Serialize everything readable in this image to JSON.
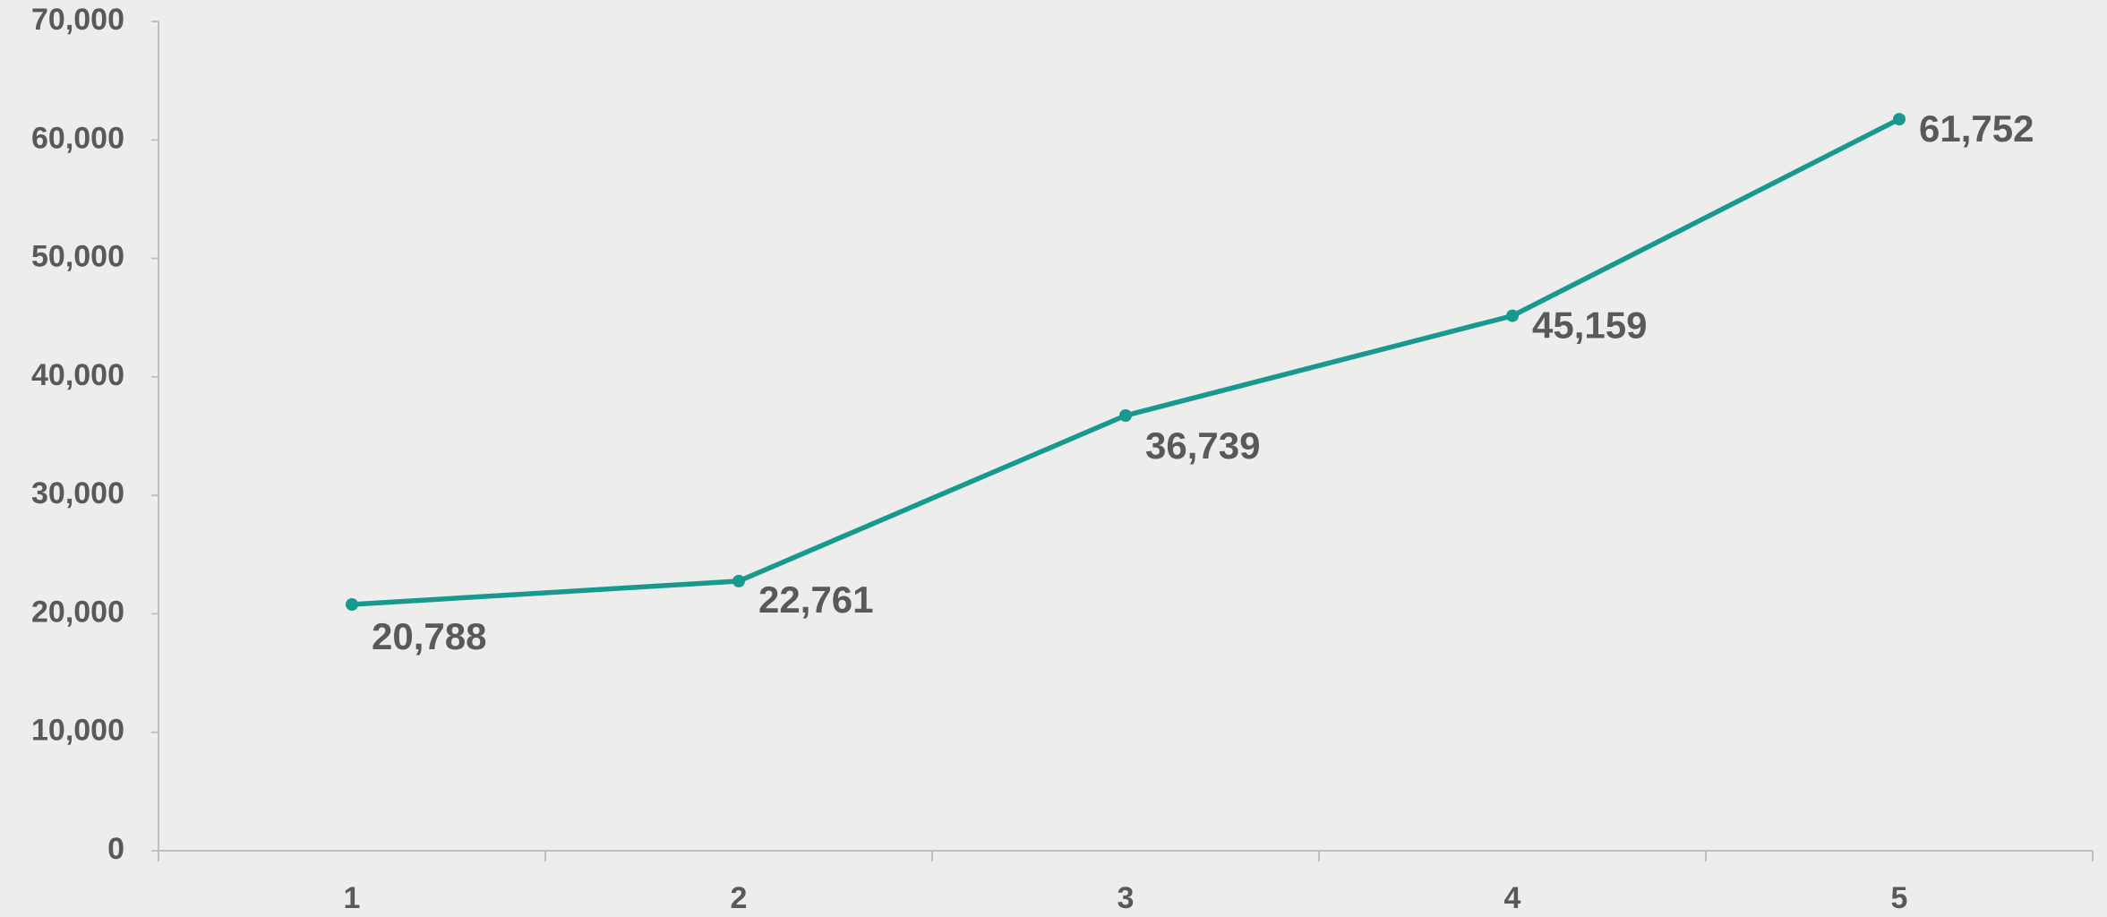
{
  "chart_data": {
    "type": "line",
    "categories": [
      "1",
      "2",
      "3",
      "4",
      "5"
    ],
    "series": [
      {
        "color": "#17998f",
        "values": [
          20788,
          22761,
          36739,
          45159,
          61752
        ],
        "value_labels": [
          "20,788",
          "22,761",
          "36,739",
          "45,159",
          "61,752"
        ]
      }
    ],
    "ylim": [
      0,
      70000
    ],
    "yticks": [
      0,
      {
        "value": 10000,
        "label": "10,000"
      },
      {
        "value": 20000,
        "label": "20,000"
      },
      {
        "value": 30000,
        "label": "30,000"
      },
      {
        "value": 40000,
        "label": "40,000"
      },
      {
        "value": 50000,
        "label": "50,000"
      },
      {
        "value": 60000,
        "label": "60,000"
      },
      {
        "value": 70000,
        "label": "70,000"
      }
    ],
    "grid": false
  }
}
